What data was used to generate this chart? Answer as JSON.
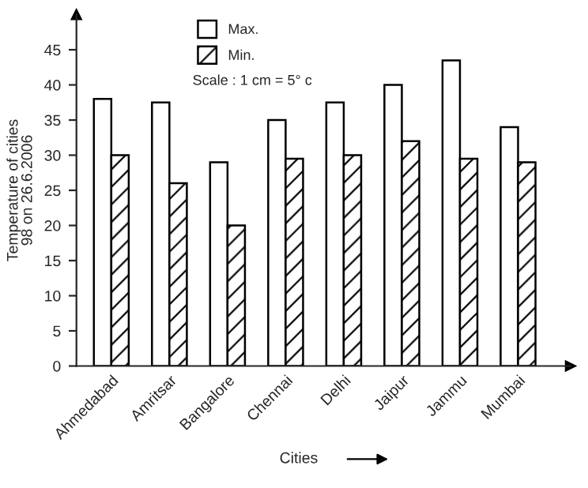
{
  "chart_data": {
    "type": "bar",
    "categories": [
      "Ahmedabad",
      "Amritsar",
      "Bangalore",
      "Chennai",
      "Delhi",
      "Jaipur",
      "Jammu",
      "Mumbai"
    ],
    "series": [
      {
        "name": "Max.",
        "color": "#ffffff",
        "values": [
          38,
          37.5,
          29,
          35,
          37.5,
          40,
          43.5,
          34
        ]
      },
      {
        "name": "Min.",
        "color": "#000000",
        "values": [
          30,
          26,
          20,
          29.5,
          30,
          32,
          29.5,
          29
        ]
      }
    ],
    "xlabel": "Cities",
    "ylabel": "Temperature of cities\n98 on 26.6.2006",
    "annotations": [
      "Scale : 1 cm = 5° c"
    ],
    "ylim": [
      0,
      50
    ],
    "yticks": [
      0,
      5,
      10,
      15,
      20,
      25,
      30,
      35,
      40,
      45
    ],
    "grid": false,
    "legend": "top"
  }
}
